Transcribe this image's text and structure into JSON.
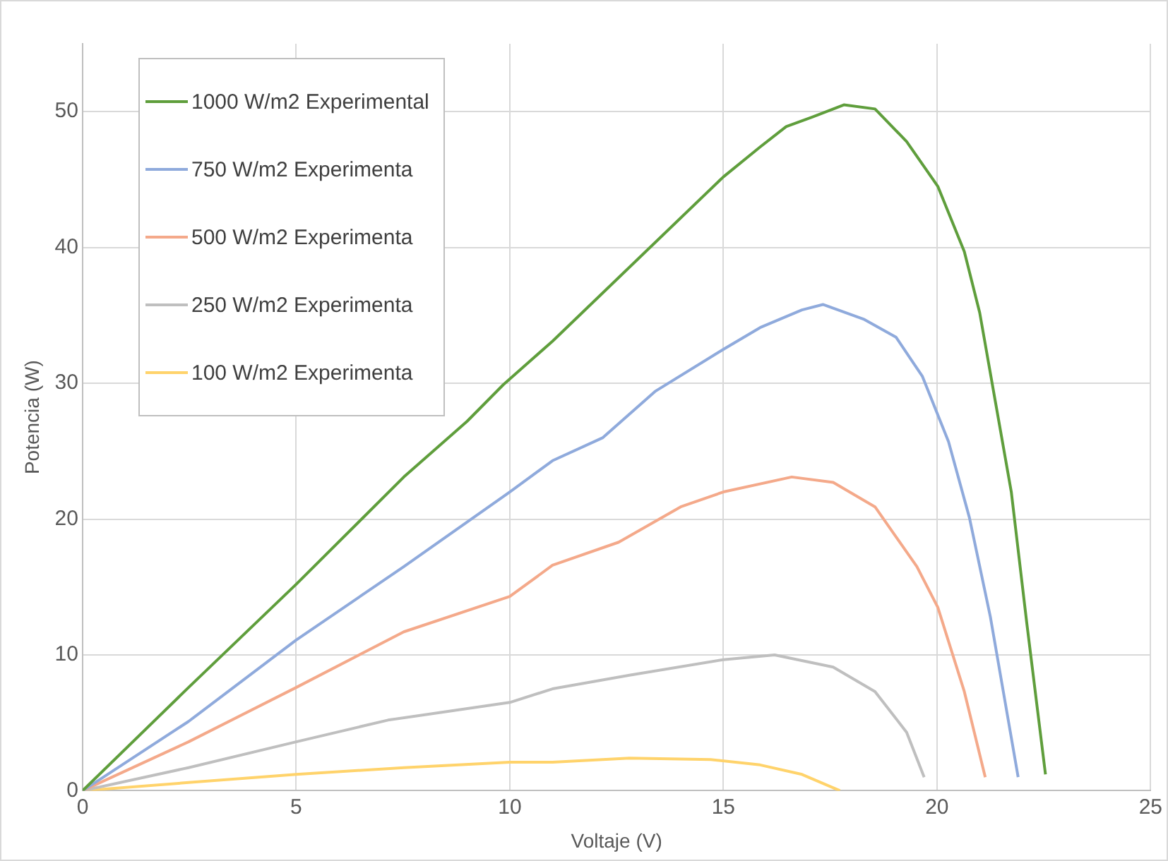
{
  "chart_data": {
    "type": "line",
    "xlabel": "Voltaje (V)",
    "ylabel": "Potencia (W)",
    "xlim": [
      0,
      25
    ],
    "xticks": [
      0,
      5,
      10,
      15,
      20,
      25
    ],
    "ylim": [
      0,
      55
    ],
    "yticks": [
      0,
      10,
      20,
      30,
      40,
      50
    ],
    "grid": true,
    "legend": "top left",
    "marker": "none",
    "line_style": "solid",
    "series": [
      {
        "name": "1000 W/m2 Experimental",
        "color": "#5f9e3c",
        "x": [
          0,
          2.48,
          5,
          7.52,
          9,
          9.85,
          11,
          15,
          15.86,
          16.47,
          17.08,
          17.82,
          18.55,
          19.29,
          20.02,
          20.64,
          21,
          21.37,
          21.74,
          22.1,
          22.54
        ],
        "values": [
          0,
          7.6,
          15.2,
          23.1,
          27.2,
          29.9,
          33.1,
          45.2,
          47.4,
          48.9,
          49.6,
          50.5,
          50.2,
          47.8,
          44.5,
          39.7,
          35.2,
          28.6,
          22,
          12.4,
          1.2
        ]
      },
      {
        "name": "750 W/m2 Experimenta",
        "color": "#8faadc",
        "x": [
          0,
          2.48,
          5,
          7.52,
          10,
          11,
          12.18,
          13.4,
          15,
          15.86,
          16.84,
          17.33,
          18.3,
          19.04,
          19.66,
          20.27,
          20.76,
          21.25,
          21.9
        ],
        "values": [
          0,
          5.1,
          11.1,
          16.5,
          22,
          24.3,
          26,
          29.4,
          32.5,
          34.1,
          35.4,
          35.8,
          34.7,
          33.4,
          30.5,
          25.7,
          20.1,
          12.8,
          1
        ]
      },
      {
        "name": "500 W/m2 Experimenta",
        "color": "#f4a98a",
        "x": [
          0,
          2.48,
          5,
          7.52,
          10,
          11,
          12.55,
          14,
          15,
          16.6,
          17.57,
          18.55,
          19.53,
          20.02,
          20.64,
          21.13
        ],
        "values": [
          0,
          3.6,
          7.6,
          11.7,
          14.3,
          16.6,
          18.3,
          20.9,
          22,
          23.1,
          22.7,
          20.9,
          16.5,
          13.5,
          7.3,
          1
        ]
      },
      {
        "name": "250 W/m2 Experimenta",
        "color": "#bfbfbf",
        "x": [
          0,
          2.48,
          5,
          7.15,
          10,
          11,
          12.8,
          15,
          16.2,
          17.57,
          18.55,
          19.29,
          19.7
        ],
        "values": [
          0,
          1.7,
          3.6,
          5.2,
          6.5,
          7.5,
          8.5,
          9.65,
          10,
          9.1,
          7.3,
          4.3,
          1
        ]
      },
      {
        "name": "100 W/m2 Experimenta",
        "color": "#ffd36b",
        "x": [
          0,
          2.48,
          5,
          7.52,
          10,
          11,
          12.8,
          14.7,
          15.86,
          16.84,
          17.73
        ],
        "values": [
          0,
          0.6,
          1.2,
          1.7,
          2.1,
          2.1,
          2.4,
          2.3,
          1.9,
          1.2,
          0
        ]
      }
    ]
  }
}
